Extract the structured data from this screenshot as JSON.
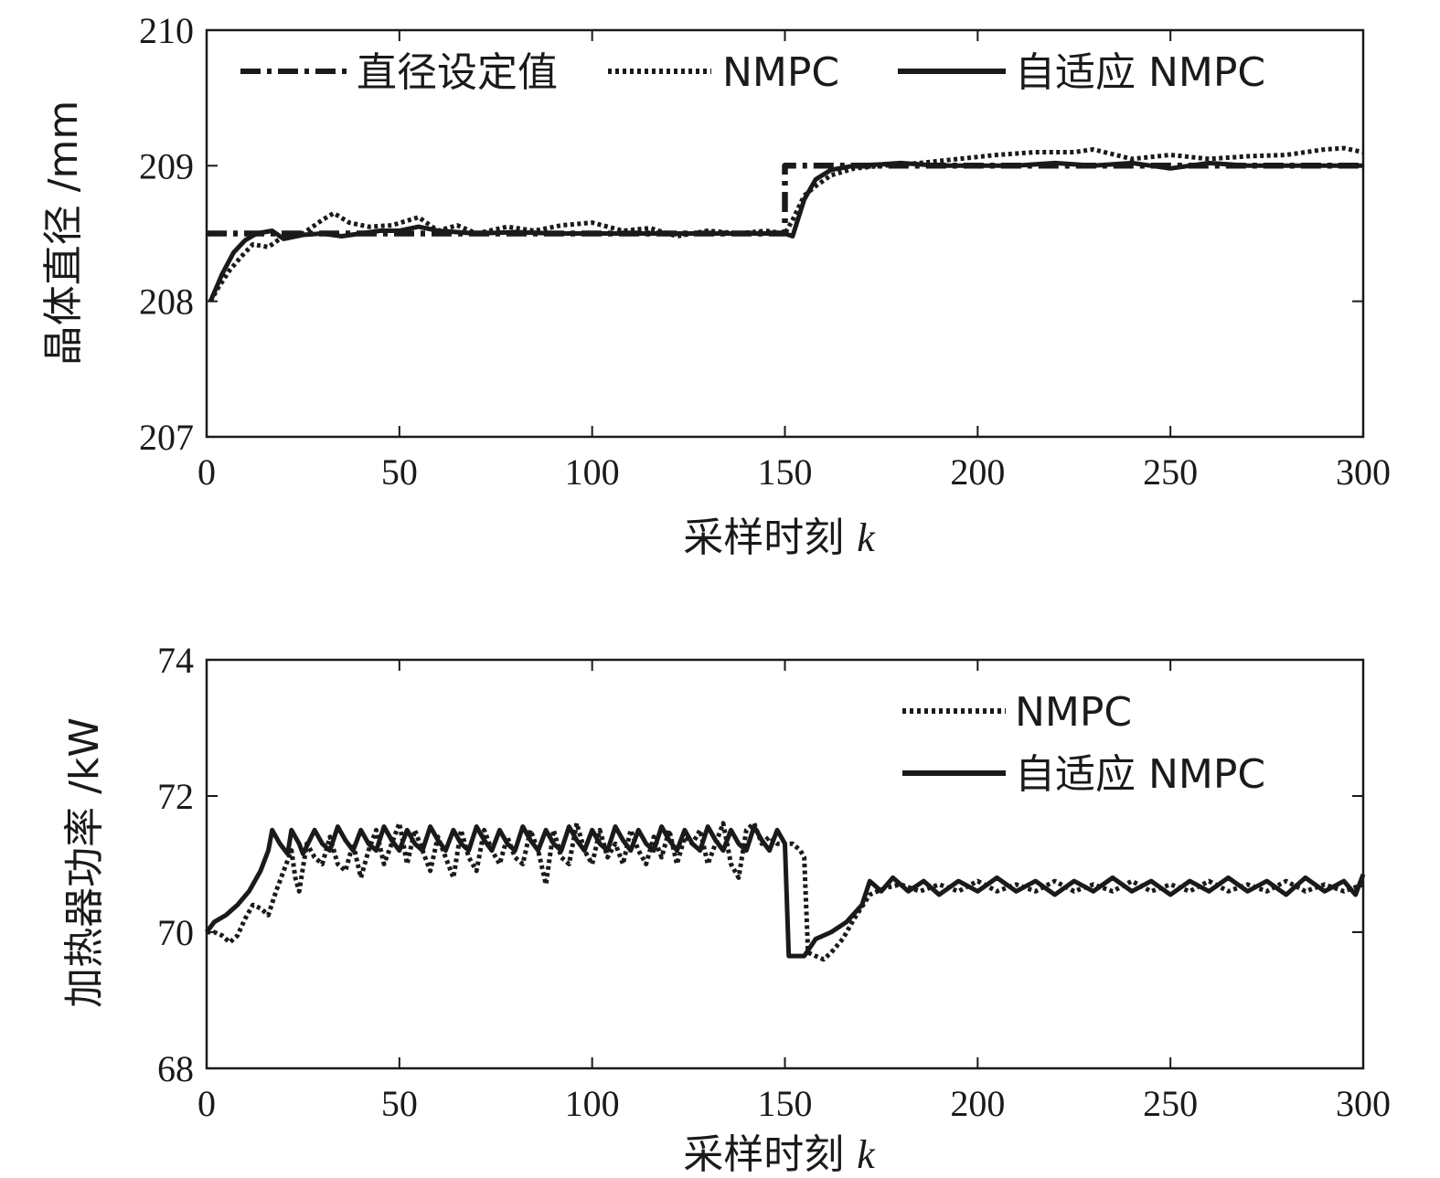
{
  "chart_data": [
    {
      "type": "line",
      "xlabel": "采样时刻",
      "xlabel_var": "k",
      "ylabel": "晶体直径 /mm",
      "xlim": [
        0,
        300
      ],
      "ylim": [
        207,
        210
      ],
      "xticks": [
        "0",
        "50",
        "100",
        "150",
        "200",
        "250",
        "300"
      ],
      "yticks": [
        "207",
        "208",
        "209",
        "210"
      ],
      "legend": "top",
      "series": [
        {
          "name": "直径设定值",
          "style": "dashdot",
          "x": [
            0,
            150,
            150,
            300
          ],
          "y": [
            208.5,
            208.5,
            209.0,
            209.0
          ]
        },
        {
          "name": "NMPC",
          "style": "dotted",
          "x": [
            1,
            3,
            6,
            9,
            12,
            16,
            20,
            25,
            30,
            33,
            37,
            42,
            48,
            55,
            60,
            65,
            70,
            78,
            85,
            92,
            100,
            108,
            115,
            122,
            130,
            138,
            145,
            150,
            152,
            155,
            158,
            162,
            168,
            175,
            185,
            195,
            205,
            215,
            225,
            230,
            240,
            250,
            260,
            270,
            280,
            290,
            295,
            300
          ],
          "y": [
            208.0,
            208.1,
            208.23,
            208.33,
            208.42,
            208.4,
            208.48,
            208.5,
            208.6,
            208.65,
            208.58,
            208.55,
            208.56,
            208.62,
            208.52,
            208.56,
            208.5,
            208.55,
            208.52,
            208.56,
            208.58,
            208.52,
            208.54,
            208.48,
            208.52,
            208.5,
            208.52,
            208.5,
            208.6,
            208.78,
            208.85,
            208.93,
            208.98,
            209.0,
            209.02,
            209.05,
            209.08,
            209.1,
            209.1,
            209.12,
            209.05,
            209.08,
            209.05,
            209.07,
            209.08,
            209.12,
            209.13,
            209.1
          ]
        },
        {
          "name": "自适应 NMPC",
          "style": "solid",
          "x": [
            1,
            4,
            7,
            10,
            13,
            17,
            20,
            25,
            30,
            35,
            40,
            45,
            50,
            55,
            60,
            70,
            80,
            90,
            100,
            110,
            120,
            130,
            140,
            148,
            150,
            152,
            155,
            158,
            162,
            168,
            175,
            180,
            190,
            200,
            210,
            220,
            230,
            240,
            250,
            260,
            270,
            280,
            290,
            300
          ],
          "y": [
            208.0,
            208.2,
            208.36,
            208.45,
            208.5,
            208.52,
            208.46,
            208.49,
            208.5,
            208.48,
            208.5,
            208.52,
            208.52,
            208.55,
            208.52,
            208.5,
            208.51,
            208.5,
            208.5,
            208.5,
            208.5,
            208.5,
            208.5,
            208.5,
            208.5,
            208.48,
            208.75,
            208.9,
            208.97,
            209.0,
            209.01,
            209.02,
            209.0,
            209.0,
            209.0,
            209.02,
            209.0,
            209.02,
            208.98,
            209.02,
            209.0,
            209.0,
            209.0,
            209.0
          ]
        }
      ]
    },
    {
      "type": "line",
      "xlabel": "采样时刻",
      "xlabel_var": "k",
      "ylabel": "加热器功率 /kW",
      "xlim": [
        0,
        300
      ],
      "ylim": [
        68,
        74
      ],
      "xticks": [
        "0",
        "50",
        "100",
        "150",
        "200",
        "250",
        "300"
      ],
      "yticks": [
        "68",
        "70",
        "72",
        "74"
      ],
      "legend": "top-right",
      "series": [
        {
          "name": "NMPC",
          "style": "dotted",
          "x": [
            0,
            2,
            4,
            6,
            8,
            10,
            12,
            14,
            16,
            18,
            20,
            22,
            23,
            24,
            26,
            28,
            30,
            32,
            34,
            36,
            38,
            40,
            42,
            44,
            46,
            48,
            50,
            52,
            54,
            56,
            58,
            60,
            62,
            64,
            66,
            68,
            70,
            72,
            74,
            76,
            78,
            80,
            82,
            84,
            86,
            88,
            90,
            92,
            94,
            96,
            98,
            100,
            102,
            104,
            106,
            108,
            110,
            112,
            114,
            116,
            118,
            120,
            122,
            124,
            126,
            128,
            130,
            132,
            134,
            136,
            138,
            140,
            142,
            144,
            146,
            148,
            150,
            152,
            154,
            155,
            156,
            158,
            160,
            162,
            165,
            168,
            172,
            176,
            180,
            185,
            190,
            195,
            200,
            205,
            210,
            215,
            220,
            225,
            230,
            235,
            240,
            245,
            250,
            255,
            260,
            265,
            270,
            275,
            280,
            285,
            290,
            295,
            300
          ],
          "y": [
            70.0,
            70.0,
            69.95,
            69.85,
            69.95,
            70.2,
            70.4,
            70.35,
            70.25,
            70.6,
            70.9,
            71.2,
            70.8,
            70.6,
            71.3,
            71.1,
            71.0,
            71.4,
            71.0,
            70.9,
            71.3,
            70.8,
            71.2,
            71.5,
            71.0,
            71.3,
            71.6,
            71.0,
            71.5,
            71.2,
            70.9,
            71.4,
            71.1,
            70.8,
            71.5,
            71.1,
            70.9,
            71.5,
            71.2,
            71.0,
            71.4,
            71.1,
            71.0,
            71.5,
            71.2,
            70.7,
            71.5,
            71.1,
            71.0,
            71.6,
            71.2,
            71.0,
            71.5,
            71.1,
            71.3,
            71.0,
            71.5,
            71.2,
            71.0,
            71.4,
            71.1,
            71.5,
            71.0,
            71.4,
            71.3,
            71.5,
            71.0,
            71.3,
            71.6,
            71.0,
            70.8,
            71.5,
            71.6,
            71.3,
            71.4,
            71.3,
            71.3,
            71.3,
            71.2,
            71.1,
            69.7,
            69.65,
            69.6,
            69.7,
            69.9,
            70.2,
            70.55,
            70.65,
            70.7,
            70.6,
            70.7,
            70.6,
            70.75,
            70.6,
            70.7,
            70.6,
            70.75,
            70.6,
            70.7,
            70.6,
            70.75,
            70.6,
            70.7,
            70.6,
            70.75,
            70.6,
            70.7,
            70.6,
            70.75,
            70.6,
            70.7,
            70.6,
            70.7
          ]
        },
        {
          "name": "自适应 NMPC",
          "style": "solid",
          "x": [
            0,
            2,
            5,
            8,
            11,
            14,
            16,
            17,
            19,
            21,
            22,
            24,
            25,
            28,
            30,
            32,
            34,
            36,
            38,
            40,
            42,
            44,
            46,
            48,
            50,
            52,
            54,
            56,
            58,
            60,
            62,
            64,
            66,
            68,
            70,
            72,
            74,
            76,
            78,
            80,
            82,
            84,
            86,
            88,
            90,
            92,
            94,
            96,
            98,
            100,
            102,
            104,
            106,
            108,
            110,
            112,
            114,
            116,
            118,
            120,
            122,
            124,
            126,
            128,
            130,
            132,
            134,
            136,
            138,
            140,
            142,
            144,
            146,
            148,
            150,
            151,
            152,
            155,
            158,
            162,
            166,
            170,
            172,
            175,
            178,
            182,
            186,
            190,
            195,
            200,
            205,
            210,
            215,
            220,
            225,
            230,
            235,
            240,
            245,
            250,
            255,
            260,
            265,
            270,
            275,
            280,
            285,
            290,
            295,
            298,
            300
          ],
          "y": [
            70.0,
            70.15,
            70.25,
            70.4,
            70.6,
            70.9,
            71.2,
            71.5,
            71.3,
            71.15,
            71.5,
            71.3,
            71.15,
            71.5,
            71.3,
            71.2,
            71.55,
            71.35,
            71.2,
            71.5,
            71.3,
            71.2,
            71.55,
            71.35,
            71.2,
            71.5,
            71.3,
            71.2,
            71.55,
            71.35,
            71.2,
            71.5,
            71.3,
            71.2,
            71.55,
            71.35,
            71.2,
            71.5,
            71.3,
            71.2,
            71.55,
            71.35,
            71.2,
            71.5,
            71.3,
            71.2,
            71.55,
            71.35,
            71.2,
            71.5,
            71.3,
            71.2,
            71.55,
            71.35,
            71.2,
            71.5,
            71.3,
            71.2,
            71.55,
            71.35,
            71.2,
            71.5,
            71.3,
            71.2,
            71.55,
            71.35,
            71.2,
            71.5,
            71.3,
            71.2,
            71.55,
            71.35,
            71.2,
            71.5,
            71.3,
            69.65,
            69.65,
            69.65,
            69.9,
            70.0,
            70.15,
            70.4,
            70.75,
            70.6,
            70.8,
            70.6,
            70.75,
            70.55,
            70.75,
            70.6,
            70.8,
            70.6,
            70.75,
            70.55,
            70.75,
            70.6,
            70.8,
            70.6,
            70.75,
            70.55,
            70.75,
            70.6,
            70.8,
            70.6,
            70.75,
            70.55,
            70.8,
            70.6,
            70.75,
            70.55,
            70.85
          ]
        }
      ]
    }
  ]
}
